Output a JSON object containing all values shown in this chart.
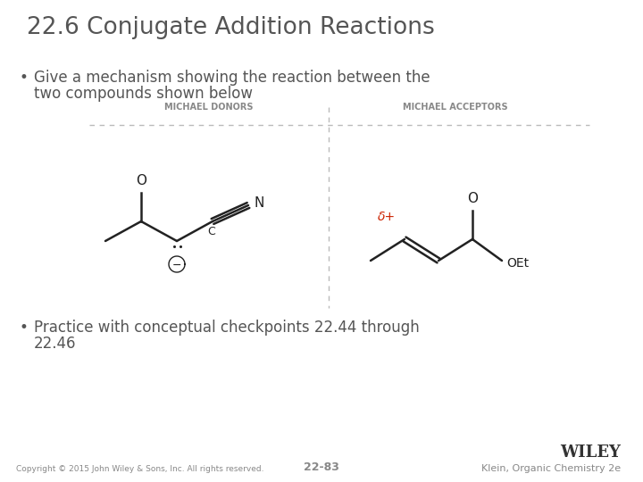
{
  "title": "22.6 Conjugate Addition Reactions",
  "bullet1_line1": "Give a mechanism showing the reaction between the",
  "bullet1_line2": "two compounds shown below",
  "bullet2_line1": "Practice with conceptual checkpoints 22.44 through",
  "bullet2_line2": "22.46",
  "label_donors": "MICHAEL DONORS",
  "label_acceptors": "MICHAEL ACCEPTORS",
  "footer_copyright": "Copyright © 2015 John Wiley & Sons, Inc. All rights reserved.",
  "footer_page": "22-83",
  "footer_right": "Klein, Organic Chemistry 2e",
  "footer_wiley": "WILEY",
  "bg_color": "#ffffff",
  "title_color": "#555555",
  "body_color": "#555555",
  "label_color": "#888888",
  "red_color": "#cc2200",
  "dashed_color": "#bbbbbb",
  "line_color": "#222222",
  "footer_color": "#888888",
  "title_fontsize": 19,
  "body_fontsize": 12,
  "label_fontsize": 7
}
